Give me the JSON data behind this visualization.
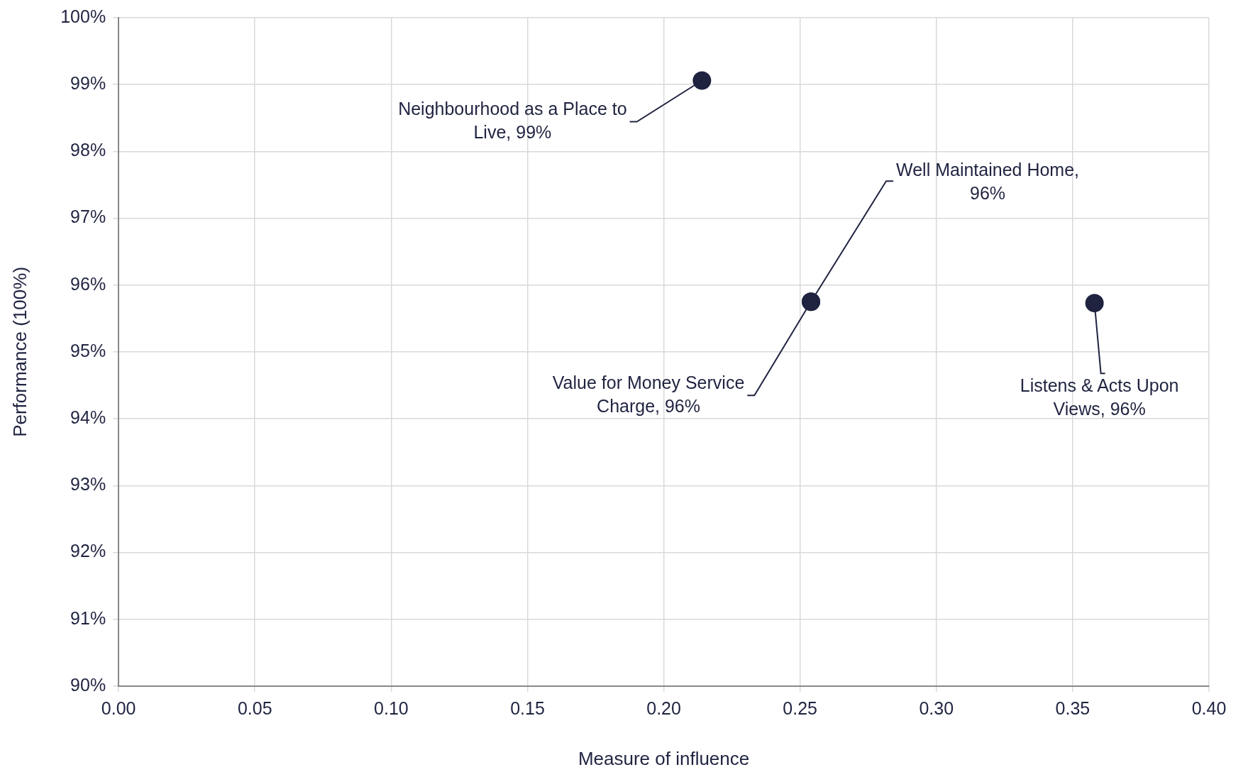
{
  "chart_data": {
    "type": "scatter",
    "xlabel": "Measure of influence",
    "ylabel": "Performance (100%)",
    "x": [
      0.214,
      0.254,
      0.254,
      0.358
    ],
    "series": [
      {
        "color": "#1f2340",
        "values": [
          99.06,
          95.75,
          95.75,
          95.73
        ]
      }
    ],
    "marker": "circle",
    "xlim": [
      0,
      0.4
    ],
    "ylim": [
      90,
      100
    ],
    "xticks": [
      {
        "value": 0,
        "label": "0.00"
      },
      {
        "value": 0.05,
        "label": "0.05"
      },
      {
        "value": 0.1,
        "label": "0.10"
      },
      {
        "value": 0.15,
        "label": "0.15"
      },
      {
        "value": 0.2,
        "label": "0.20"
      },
      {
        "value": 0.25,
        "label": "0.25"
      },
      {
        "value": 0.3,
        "label": "0.30"
      },
      {
        "value": 0.35,
        "label": "0.35"
      },
      {
        "value": 0.4,
        "label": "0.40"
      }
    ],
    "yticks": [
      {
        "value": 90,
        "label": "90%"
      },
      {
        "value": 91,
        "label": "91%"
      },
      {
        "value": 92,
        "label": "92%"
      },
      {
        "value": 93,
        "label": "93%"
      },
      {
        "value": 94,
        "label": "94%"
      },
      {
        "value": 95,
        "label": "95%"
      },
      {
        "value": 96,
        "label": "96%"
      },
      {
        "value": 97,
        "label": "97%"
      },
      {
        "value": 98,
        "label": "98%"
      },
      {
        "value": 99,
        "label": "99%"
      },
      {
        "value": 100,
        "label": "100%"
      }
    ],
    "grid": true,
    "legend": false,
    "annotations": [
      {
        "text": "Neighbourhood as a Place to Live, 99%",
        "x": 0.214,
        "y": 99.06
      },
      {
        "text": "Well Maintained Home, 96%",
        "x": 0.254,
        "y": 95.75
      },
      {
        "text": "Value for Money Service Charge, 96%",
        "x": 0.254,
        "y": 95.75
      },
      {
        "text": "Listens & Acts Upon Views, 96%",
        "x": 0.358,
        "y": 95.73
      }
    ]
  }
}
